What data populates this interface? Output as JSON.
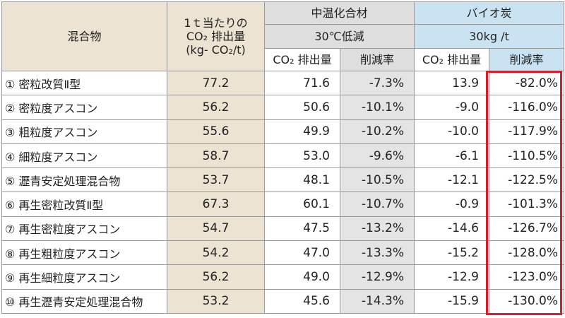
{
  "table": {
    "header": {
      "mixture": "混合物",
      "per_ton_line1": "1ｔ当たりの",
      "per_ton_line2": "CO₂ 排出量",
      "per_ton_line3": "(kg- CO₂/t)",
      "warm_mix": "中温化合材",
      "warm_mix_sub": "30℃低減",
      "biochar": "バイオ炭",
      "biochar_sub": "30kg /t",
      "co2_emission": "CO₂ 排出量",
      "reduction_rate": "削減率"
    },
    "rows": [
      {
        "name": "① 密粒改質Ⅱ型",
        "total": "77.2",
        "warm_co2": "71.6",
        "warm_rate": "-7.3%",
        "bio_co2": "13.9",
        "bio_rate": "-82.0%"
      },
      {
        "name": "② 密粒度アスコン",
        "total": "56.2",
        "warm_co2": "50.6",
        "warm_rate": "-10.1%",
        "bio_co2": "-9.0",
        "bio_rate": "-116.0%"
      },
      {
        "name": "③ 粗粒度アスコン",
        "total": "55.6",
        "warm_co2": "49.9",
        "warm_rate": "-10.2%",
        "bio_co2": "-10.0",
        "bio_rate": "-117.9%"
      },
      {
        "name": "④ 細粒度アスコン",
        "total": "58.7",
        "warm_co2": "53.0",
        "warm_rate": "-9.6%",
        "bio_co2": "-6.1",
        "bio_rate": "-110.5%"
      },
      {
        "name": "⑤ 瀝青安定処理混合物",
        "total": "53.7",
        "warm_co2": "48.1",
        "warm_rate": "-10.5%",
        "bio_co2": "-12.1",
        "bio_rate": "-122.5%"
      },
      {
        "name": "⑥ 再生密粒改質Ⅱ型",
        "total": "67.3",
        "warm_co2": "60.1",
        "warm_rate": "-10.7%",
        "bio_co2": "-0.9",
        "bio_rate": "-101.3%"
      },
      {
        "name": "⑦ 再生密粒度アスコン",
        "total": "54.7",
        "warm_co2": "47.5",
        "warm_rate": "-13.2%",
        "bio_co2": "-14.6",
        "bio_rate": "-126.7%"
      },
      {
        "name": "⑧ 再生粗粒度アスコン",
        "total": "54.2",
        "warm_co2": "47.0",
        "warm_rate": "-13.3%",
        "bio_co2": "-15.2",
        "bio_rate": "-128.0%"
      },
      {
        "name": "⑨ 再生細粒度アスコン",
        "total": "56.2",
        "warm_co2": "49.0",
        "warm_rate": "-12.9%",
        "bio_co2": "-12.9",
        "bio_rate": "-123.0%"
      },
      {
        "name": "⑩ 再生瀝青安定処理混合物",
        "total": "53.2",
        "warm_co2": "45.6",
        "warm_rate": "-14.3%",
        "bio_co2": "-15.9",
        "bio_rate": "-130.0%"
      }
    ]
  },
  "colors": {
    "header_beige": "#ece3d3",
    "header_gray": "#dedede",
    "header_blue": "#c9e3f2",
    "highlight_red": "#d4202a"
  }
}
